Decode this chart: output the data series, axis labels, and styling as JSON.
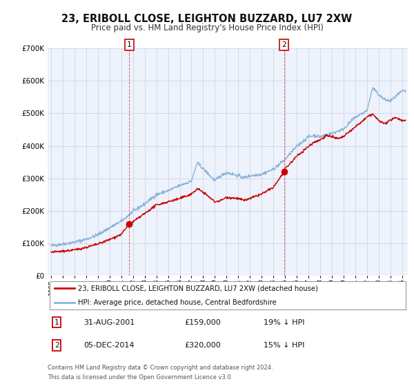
{
  "title": "23, ERIBOLL CLOSE, LEIGHTON BUZZARD, LU7 2XW",
  "subtitle": "Price paid vs. HM Land Registry's House Price Index (HPI)",
  "title_fontsize": 10.5,
  "subtitle_fontsize": 8.5,
  "background_color": "#ffffff",
  "plot_background_color": "#eef2fb",
  "grid_color": "#d0d8ee",
  "hpi_color": "#88b4d8",
  "price_color": "#cc0000",
  "ylim": [
    0,
    700000
  ],
  "yticks": [
    0,
    100000,
    200000,
    300000,
    400000,
    500000,
    600000,
    700000
  ],
  "ytick_labels": [
    "£0",
    "£100K",
    "£200K",
    "£300K",
    "£400K",
    "£500K",
    "£600K",
    "£700K"
  ],
  "xlim_start": 1994.7,
  "xlim_end": 2025.5,
  "xtick_years": [
    1995,
    1996,
    1997,
    1998,
    1999,
    2000,
    2001,
    2002,
    2003,
    2004,
    2005,
    2006,
    2007,
    2008,
    2009,
    2010,
    2011,
    2012,
    2013,
    2014,
    2015,
    2016,
    2017,
    2018,
    2019,
    2020,
    2021,
    2022,
    2023,
    2024,
    2025
  ],
  "sale1_x": 2001.667,
  "sale1_y": 159000,
  "sale1_label": "1",
  "sale1_date": "31-AUG-2001",
  "sale1_price": "£159,000",
  "sale1_hpi": "19% ↓ HPI",
  "sale2_x": 2014.917,
  "sale2_y": 320000,
  "sale2_label": "2",
  "sale2_date": "05-DEC-2014",
  "sale2_price": "£320,000",
  "sale2_hpi": "15% ↓ HPI",
  "legend_line1": "23, ERIBOLL CLOSE, LEIGHTON BUZZARD, LU7 2XW (detached house)",
  "legend_line2": "HPI: Average price, detached house, Central Bedfordshire",
  "footnote1": "Contains HM Land Registry data © Crown copyright and database right 2024.",
  "footnote2": "This data is licensed under the Open Government Licence v3.0."
}
